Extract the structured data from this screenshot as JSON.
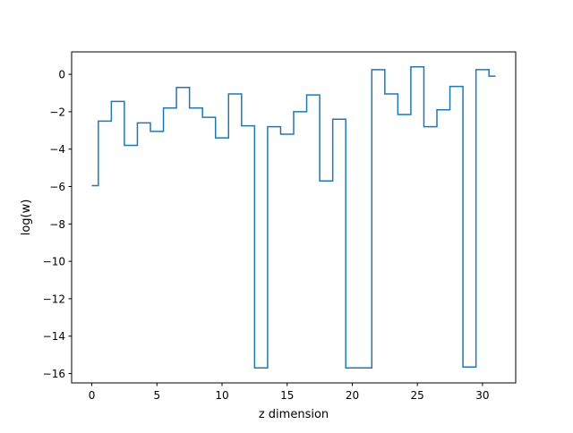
{
  "chart_data": {
    "type": "line",
    "drawstyle": "steps-mid",
    "title": "",
    "xlabel": "z dimension",
    "ylabel": "log(w)",
    "xlim": [
      -1.55,
      32.55
    ],
    "ylim": [
      -16.5,
      1.2
    ],
    "xticks": [
      0,
      5,
      10,
      15,
      20,
      25,
      30
    ],
    "yticks": [
      0,
      -2,
      -4,
      -6,
      -8,
      -10,
      -12,
      -14,
      -16
    ],
    "grid": false,
    "legend": "none",
    "colors": {
      "series": "#1f77b4",
      "axes": "#000000",
      "background": "#ffffff"
    },
    "series": [
      {
        "x": [
          0,
          1,
          2,
          3,
          4,
          5,
          6,
          7,
          8,
          9,
          10,
          11,
          12,
          13,
          14,
          15,
          16,
          17,
          18,
          19,
          20,
          21,
          22,
          23,
          24,
          25,
          26,
          27,
          28,
          29,
          30,
          31
        ],
        "values": [
          -5.95,
          -2.5,
          -1.45,
          -3.8,
          -2.6,
          -3.05,
          -1.8,
          -0.7,
          -1.8,
          -2.3,
          -3.4,
          -1.05,
          -2.75,
          -15.7,
          -2.8,
          -3.2,
          -2.0,
          -1.1,
          -5.7,
          -2.4,
          -15.7,
          -15.7,
          0.25,
          -1.05,
          -2.15,
          0.4,
          -2.8,
          -1.9,
          -0.65,
          -15.65,
          0.25,
          -0.1
        ]
      }
    ]
  }
}
